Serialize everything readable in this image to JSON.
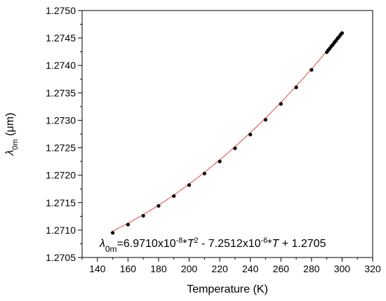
{
  "chart_data": {
    "type": "scatter",
    "title": "",
    "xlabel": "Temperature (K)",
    "ylabel": {
      "symbol": "λ",
      "sub": "0m",
      "unit": " (μm)"
    },
    "xlim": [
      130,
      320
    ],
    "ylim": [
      1.2705,
      1.275
    ],
    "x_ticks": [
      140,
      160,
      180,
      200,
      220,
      240,
      260,
      280,
      300,
      320
    ],
    "y_ticks": [
      "1.2705",
      "1.2710",
      "1.2715",
      "1.2720",
      "1.2725",
      "1.2730",
      "1.2735",
      "1.2740",
      "1.2745",
      "1.2750"
    ],
    "grid": false,
    "series": [
      {
        "marker": "circle",
        "color": "#000000",
        "x": [
          150,
          160,
          170,
          180,
          190,
          200,
          210,
          220,
          230,
          240,
          250,
          260,
          270,
          280,
          290,
          291,
          292,
          293,
          294,
          295,
          296,
          297,
          298,
          299,
          300
        ],
        "y": [
          1.27095,
          1.2711,
          1.27126,
          1.27144,
          1.27162,
          1.27182,
          1.27203,
          1.27225,
          1.27249,
          1.27274,
          1.27301,
          1.2733,
          1.2736,
          1.27392,
          1.27424,
          1.27428,
          1.27431,
          1.27435,
          1.27438,
          1.27442,
          1.27445,
          1.27449,
          1.27452,
          1.27456,
          1.27459
        ]
      }
    ],
    "fit": {
      "color": "#e8453c",
      "a": 6.971e-08,
      "b": -7.2512e-06,
      "c": 1.2705,
      "from": 150,
      "to": 300
    },
    "annotation": {
      "lhs_symbol": "λ",
      "lhs_sub": "0m",
      "t1": "=6.9710x10",
      "e1": "-8",
      "t2": "*",
      "v1": "T",
      "e2": "2",
      "t3": " - 7.2512x10",
      "e3": "-6",
      "t4": "*",
      "v2": "T",
      "t5": " + 1.2705"
    }
  }
}
